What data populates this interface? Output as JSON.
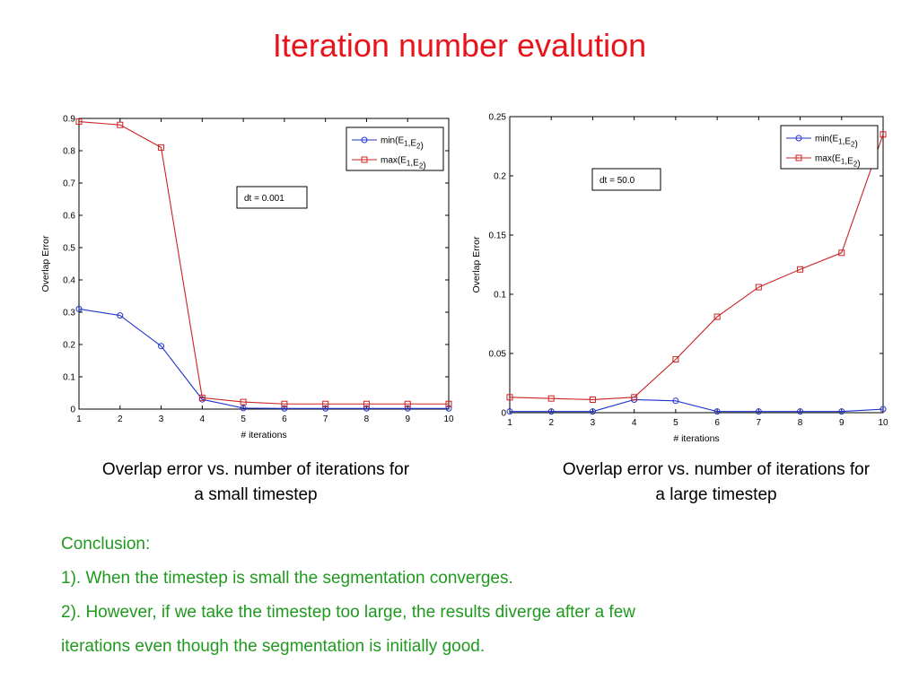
{
  "slide": {
    "title": "Iteration number evalution",
    "caption_left_line1": "Overlap error vs. number of iterations for",
    "caption_left_line2": "a small timestep",
    "caption_right_line1": "Overlap error vs. number of iterations for",
    "caption_right_line2": "a large timestep",
    "conclusion": [
      "Conclusion:",
      "1). When the timestep is small the segmentation converges.",
      "2). However, if we take the timestep too large, the results diverge after a few",
      "iterations even though the segmentation is initially good."
    ]
  },
  "colors": {
    "title": "#e8141c",
    "conclusion": "#1f9a1f",
    "series_min": "#2233cc",
    "series_max": "#cc2222"
  },
  "chart_data": [
    {
      "type": "line",
      "xlabel": "# iterations",
      "ylabel": "Overlap Error",
      "annotation": "dt = 0.001",
      "xlim": [
        1,
        10
      ],
      "ylim": [
        0,
        0.9
      ],
      "xticks": [
        "1",
        "2",
        "3",
        "4",
        "5",
        "6",
        "7",
        "8",
        "9",
        "10"
      ],
      "yticks": [
        "0",
        "0.1",
        "0.2",
        "0.3",
        "0.4",
        "0.5",
        "0.6",
        "0.7",
        "0.8",
        "0.9"
      ],
      "legend_position": "top-right",
      "series": [
        {
          "name": "min(E1,E2)",
          "name_parts": [
            "min(E",
            "1",
            ",E",
            "2",
            ")"
          ],
          "color": "#2233cc",
          "marker": "circle",
          "x": [
            1,
            2,
            3,
            4,
            5,
            6,
            7,
            8,
            9,
            10
          ],
          "y": [
            0.31,
            0.29,
            0.195,
            0.03,
            0.003,
            0.002,
            0.002,
            0.002,
            0.002,
            0.002
          ]
        },
        {
          "name": "max(E1,E2)",
          "name_parts": [
            "max(E",
            "1",
            ",E",
            "2",
            ")"
          ],
          "color": "#cc2222",
          "marker": "square",
          "x": [
            1,
            2,
            3,
            4,
            5,
            6,
            7,
            8,
            9,
            10
          ],
          "y": [
            0.89,
            0.88,
            0.81,
            0.035,
            0.022,
            0.016,
            0.016,
            0.016,
            0.016,
            0.016
          ]
        }
      ]
    },
    {
      "type": "line",
      "xlabel": "# iterations",
      "ylabel": "Overlap Error",
      "annotation": "dt = 50.0",
      "xlim": [
        1,
        10
      ],
      "ylim": [
        0,
        0.25
      ],
      "xticks": [
        "1",
        "2",
        "3",
        "4",
        "5",
        "6",
        "7",
        "8",
        "9",
        "10"
      ],
      "yticks": [
        "0",
        "0.05",
        "0.1",
        "0.15",
        "0.2",
        "0.25"
      ],
      "legend_position": "top-right",
      "series": [
        {
          "name": "min(E1,E2)",
          "name_parts": [
            "min(E",
            "1",
            ",E",
            "2",
            ")"
          ],
          "color": "#2233cc",
          "marker": "circle",
          "x": [
            1,
            2,
            3,
            4,
            5,
            6,
            7,
            8,
            9,
            10
          ],
          "y": [
            0.001,
            0.001,
            0.001,
            0.011,
            0.01,
            0.001,
            0.001,
            0.001,
            0.001,
            0.003
          ]
        },
        {
          "name": "max(E1,E2)",
          "name_parts": [
            "max(E",
            "1",
            ",E",
            "2",
            ")"
          ],
          "color": "#cc2222",
          "marker": "square",
          "x": [
            1,
            2,
            3,
            4,
            5,
            6,
            7,
            8,
            9,
            10
          ],
          "y": [
            0.013,
            0.012,
            0.011,
            0.013,
            0.045,
            0.081,
            0.106,
            0.121,
            0.135,
            0.235
          ]
        }
      ]
    }
  ]
}
